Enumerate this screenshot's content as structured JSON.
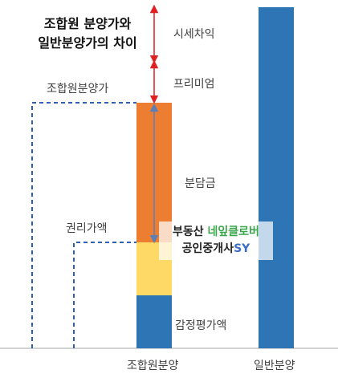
{
  "title_line1": "조합원 분양가와",
  "title_line2": "일반분양가의 차이",
  "labels": {
    "market_diff": "시세차익",
    "premium": "프리미엄",
    "member_price": "조합원분양가",
    "contribution": "분담금",
    "rights_value": "권리가액",
    "appraisal": "감정평가액",
    "member_sale": "조합원분양",
    "general_sale": "일반분양"
  },
  "watermark": {
    "line1_a": "부동산 ",
    "line1_b": "네잎클로버",
    "line2_a": "공인중개사",
    "line2_b": "SY"
  },
  "colors": {
    "blue": "#2e75b6",
    "orange": "#ed7d31",
    "yellow": "#ffd966",
    "red": "#e02020",
    "dashed_blue": "#2e5fb0",
    "arrow_gray_blue": "#5b7fb8"
  }
}
